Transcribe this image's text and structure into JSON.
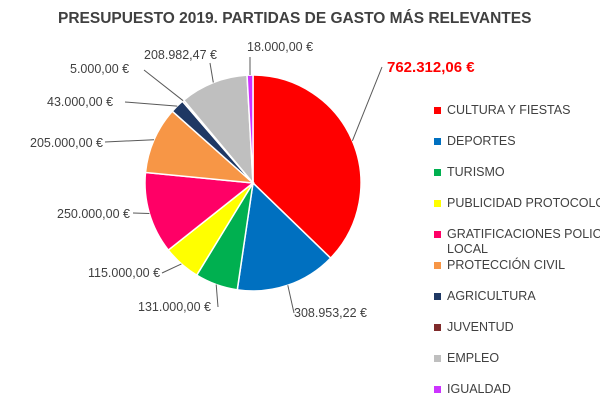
{
  "chart_data": {
    "type": "pie",
    "title": "PRESUPUESTO 2019. PARTIDAS DE GASTO MÁS RELEVANTES",
    "highlight_label": "762.312,06 €",
    "slices": [
      {
        "name": "CULTURA Y FIESTAS",
        "value": 762312.06,
        "label": "762.312,06 €",
        "color": "#ff0000"
      },
      {
        "name": "DEPORTES",
        "value": 308953.22,
        "label": "308.953,22 €",
        "color": "#0070c0"
      },
      {
        "name": "TURISMO",
        "value": 131000.0,
        "label": "131.000,00 €",
        "color": "#00b050"
      },
      {
        "name": "PUBLICIDAD PROTOCOLO",
        "value": 115000.0,
        "label": "115.000,00 €",
        "color": "#ffff00"
      },
      {
        "name": "GRATIFICACIONES POLICIA LOCAL",
        "legend_lines": [
          "GRATIFICACIONES POLICIA",
          "LOCAL"
        ],
        "value": 250000.0,
        "label": "250.000,00 €",
        "color": "#ff0066"
      },
      {
        "name": "PROTECCIÓN CIVIL",
        "value": 205000.0,
        "label": "205.000,00 €",
        "color": "#f79646"
      },
      {
        "name": "AGRICULTURA",
        "value": 43000.0,
        "label": "43.000,00 €",
        "color": "#1f3864"
      },
      {
        "name": "JUVENTUD",
        "value": 5000.0,
        "label": "5.000,00 €",
        "color": "#7f2b2b"
      },
      {
        "name": "EMPLEO",
        "value": 208982.47,
        "label": "208.982,47 €",
        "color": "#bfbfbf"
      },
      {
        "name": "IGUALDAD",
        "value": 18000.0,
        "label": "18.000,00 €",
        "color": "#cc33ff"
      }
    ],
    "legend_position": "right"
  }
}
